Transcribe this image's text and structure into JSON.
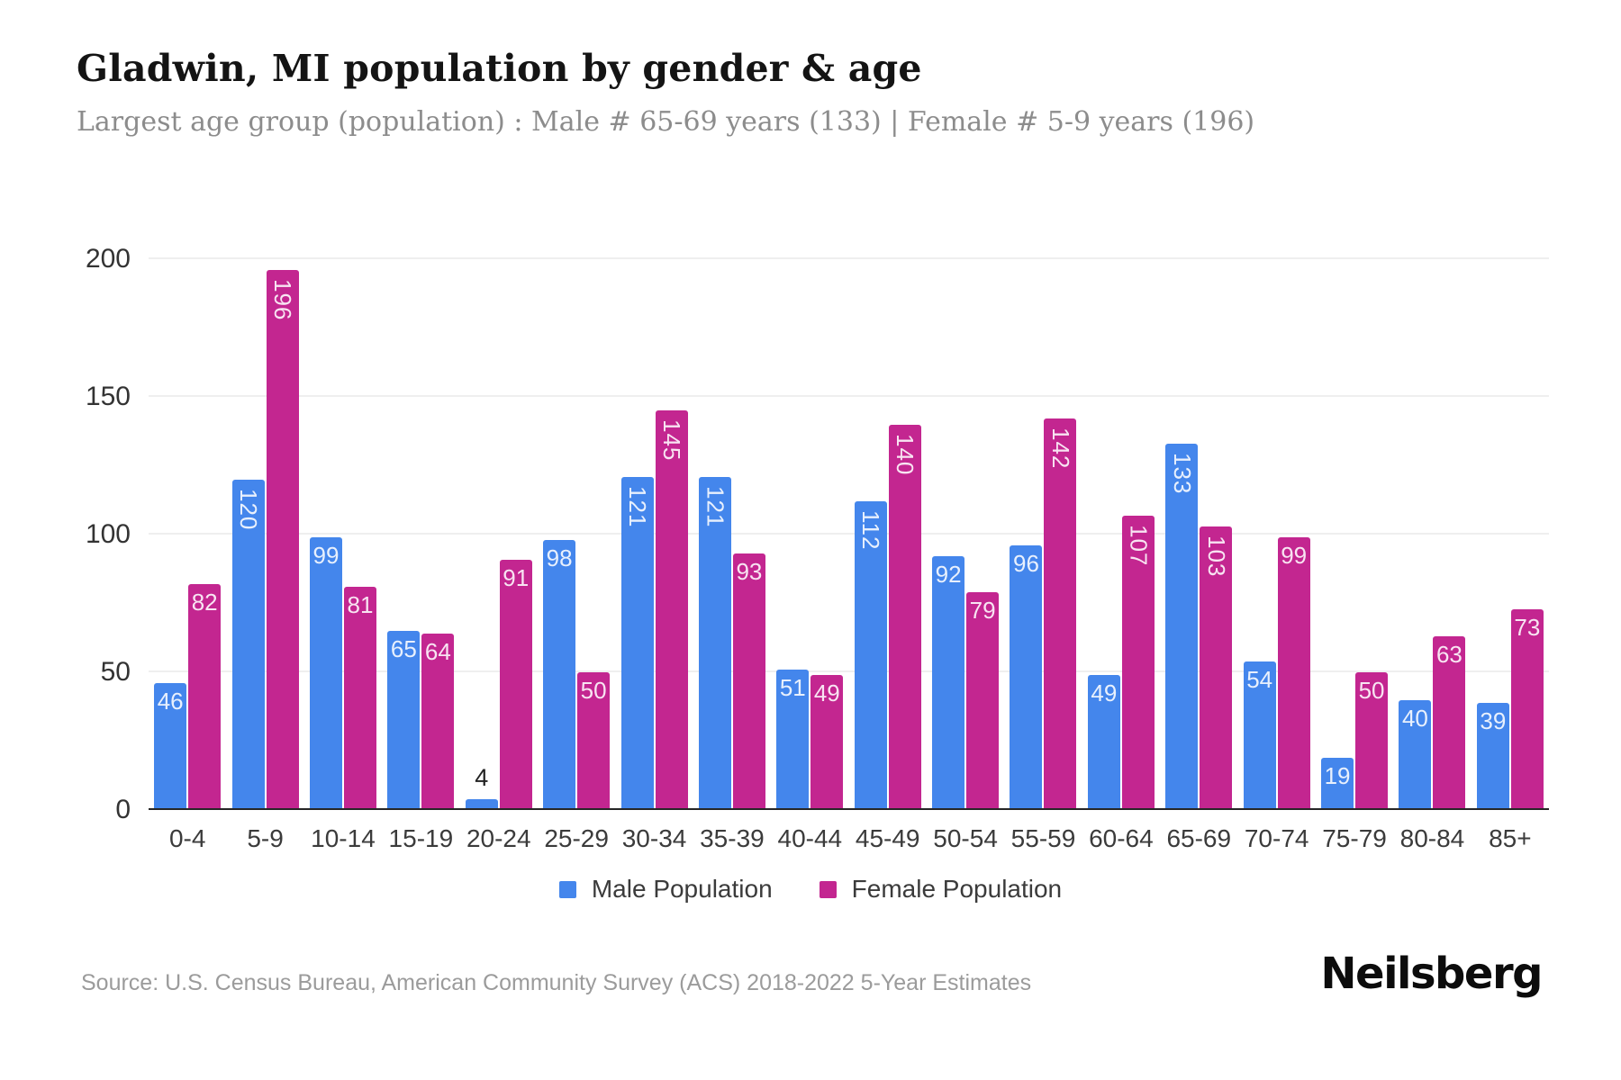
{
  "header": {
    "title": "Gladwin, MI population by gender & age",
    "subtitle": "Largest age group (population) : Male # 65-69 years (133) | Female # 5-9 years (196)"
  },
  "colors": {
    "male": "#4486EC",
    "female": "#C32690",
    "grid": "#efefef",
    "axis": "#262626",
    "bar_label": "rgba(255,255,255,0.88)",
    "bar_label_outside": "#222222"
  },
  "chart_data": {
    "type": "bar",
    "title": "Gladwin, MI population by gender & age",
    "xlabel": "",
    "ylabel": "",
    "ylim": [
      0,
      200
    ],
    "yticks": [
      0,
      50,
      100,
      150,
      200
    ],
    "grid": true,
    "legend_position": "bottom",
    "categories": [
      "0-4",
      "5-9",
      "10-14",
      "15-19",
      "20-24",
      "25-29",
      "30-34",
      "35-39",
      "40-44",
      "45-49",
      "50-54",
      "55-59",
      "60-64",
      "65-69",
      "70-74",
      "75-79",
      "80-84",
      "85+"
    ],
    "series": [
      {
        "name": "Male Population",
        "color": "#4486EC",
        "values": [
          46,
          120,
          99,
          65,
          4,
          98,
          121,
          121,
          51,
          112,
          92,
          96,
          49,
          133,
          54,
          19,
          40,
          39
        ]
      },
      {
        "name": "Female Population",
        "color": "#C32690",
        "values": [
          82,
          196,
          81,
          64,
          91,
          50,
          145,
          93,
          49,
          140,
          79,
          142,
          107,
          103,
          99,
          50,
          63,
          73
        ]
      }
    ]
  },
  "footer": {
    "source": "Source: U.S. Census Bureau, American Community Survey (ACS) 2018-2022 5-Year Estimates",
    "brand": "Neilsberg"
  }
}
